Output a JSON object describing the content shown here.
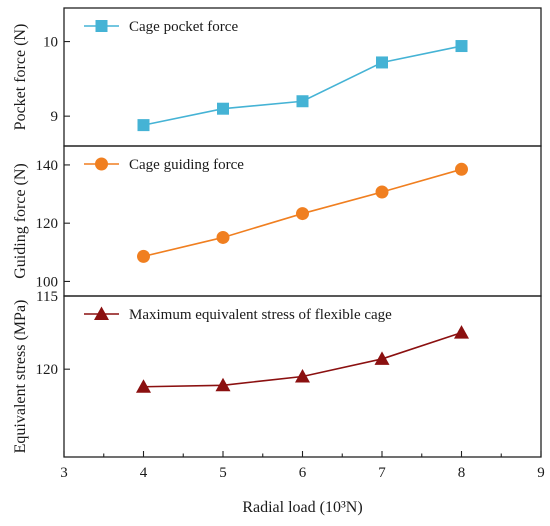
{
  "chart_data": [
    {
      "type": "line",
      "x": [
        4,
        5,
        6,
        7,
        8
      ],
      "xlim": [
        3,
        9
      ],
      "ylim": [
        8.6,
        10.45
      ],
      "yticks": [
        9,
        10
      ],
      "ylabel": "Pocket force (N)",
      "series": [
        {
          "name": "Cage pocket force",
          "values": [
            8.88,
            9.1,
            9.2,
            9.72,
            9.94
          ],
          "color": "#45B3D5",
          "marker": "square"
        }
      ]
    },
    {
      "type": "line",
      "x": [
        4,
        5,
        6,
        7,
        8
      ],
      "xlim": [
        3,
        9
      ],
      "ylim": [
        95,
        146.5
      ],
      "yticks": [
        100,
        120,
        140
      ],
      "ylabel": "Guiding force (N)",
      "series": [
        {
          "name": "Cage guiding force",
          "values": [
            108.6,
            115.1,
            123.3,
            130.7,
            138.5
          ],
          "color": "#F07F20",
          "marker": "circle"
        }
      ]
    },
    {
      "type": "line",
      "x": [
        4,
        5,
        6,
        7,
        8
      ],
      "xlim": [
        3,
        9
      ],
      "ylim": [
        115,
        126
      ],
      "y_inverted": true,
      "yticks": [
        115,
        120
      ],
      "ylabel": "Equivalent stress (MPa)",
      "series": [
        {
          "name": "Maximum equivalent stress of flexible cage",
          "values": [
            121.2,
            121.1,
            120.5,
            119.3,
            117.5
          ],
          "color": "#8B1010",
          "marker": "triangle"
        }
      ]
    }
  ],
  "x_axis": {
    "label": "Radial load (10³N)",
    "ticks": [
      3,
      4,
      5,
      6,
      7,
      8,
      9
    ]
  }
}
